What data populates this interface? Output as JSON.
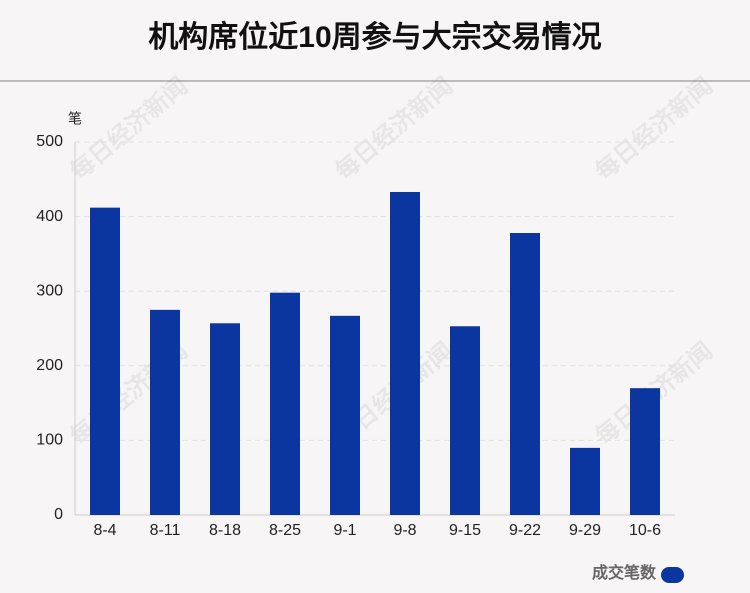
{
  "chart_data": {
    "type": "bar",
    "title": "机构席位近10周参与大宗交易情况",
    "y_unit": "笔",
    "watermark": "每日经济新闻",
    "categories": [
      "8-4",
      "8-11",
      "8-18",
      "8-25",
      "9-1",
      "9-8",
      "9-15",
      "9-22",
      "9-29",
      "10-6"
    ],
    "series": [
      {
        "name": "成交笔数",
        "color": "#0b36a0",
        "values": [
          412,
          275,
          257,
          298,
          267,
          433,
          253,
          378,
          90,
          170
        ]
      }
    ],
    "ylim": [
      0,
      500
    ],
    "yticks": [
      0,
      100,
      200,
      300,
      400,
      500
    ],
    "grid": true,
    "legend": "bottom-right"
  }
}
